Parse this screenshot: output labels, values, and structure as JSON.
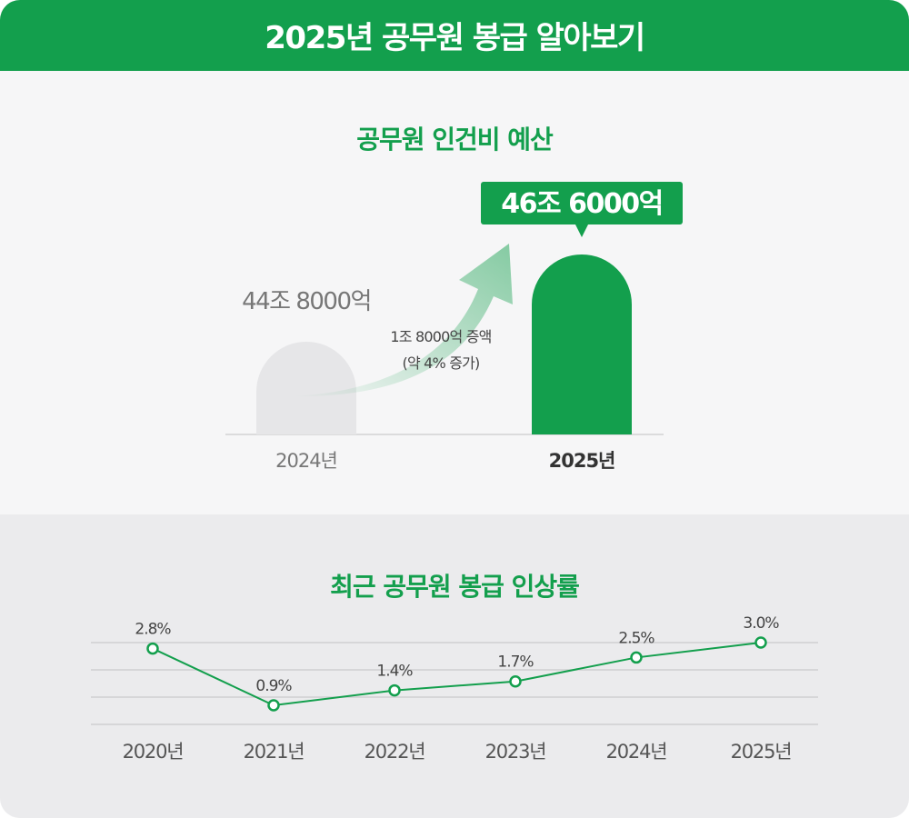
{
  "header": {
    "title": "2025년 공무원 봉급 알아보기"
  },
  "colors": {
    "brand_green": "#139f4d",
    "gray_bar": "#e6e6e8",
    "gray_text": "#777777",
    "dark_text": "#333333"
  },
  "chart_data": [
    {
      "type": "bar",
      "title": "공무원 인건비 예산",
      "categories": [
        "2024년",
        "2025년"
      ],
      "values": [
        44.8,
        46.6
      ],
      "unit": "조 원",
      "value_labels": [
        "44조 8000억",
        "46조 6000억"
      ],
      "annotation": {
        "line1": "1조 8000억 증액",
        "line2": "(약 4% 증가)"
      }
    },
    {
      "type": "line",
      "title": "최근 공무원 봉급 인상률",
      "categories": [
        "2020년",
        "2021년",
        "2022년",
        "2023년",
        "2024년",
        "2025년"
      ],
      "values": [
        2.8,
        0.9,
        1.4,
        1.7,
        2.5,
        3.0
      ],
      "value_labels": [
        "2.8%",
        "0.9%",
        "1.4%",
        "1.7%",
        "2.5%",
        "3.0%"
      ],
      "grid": true
    }
  ]
}
